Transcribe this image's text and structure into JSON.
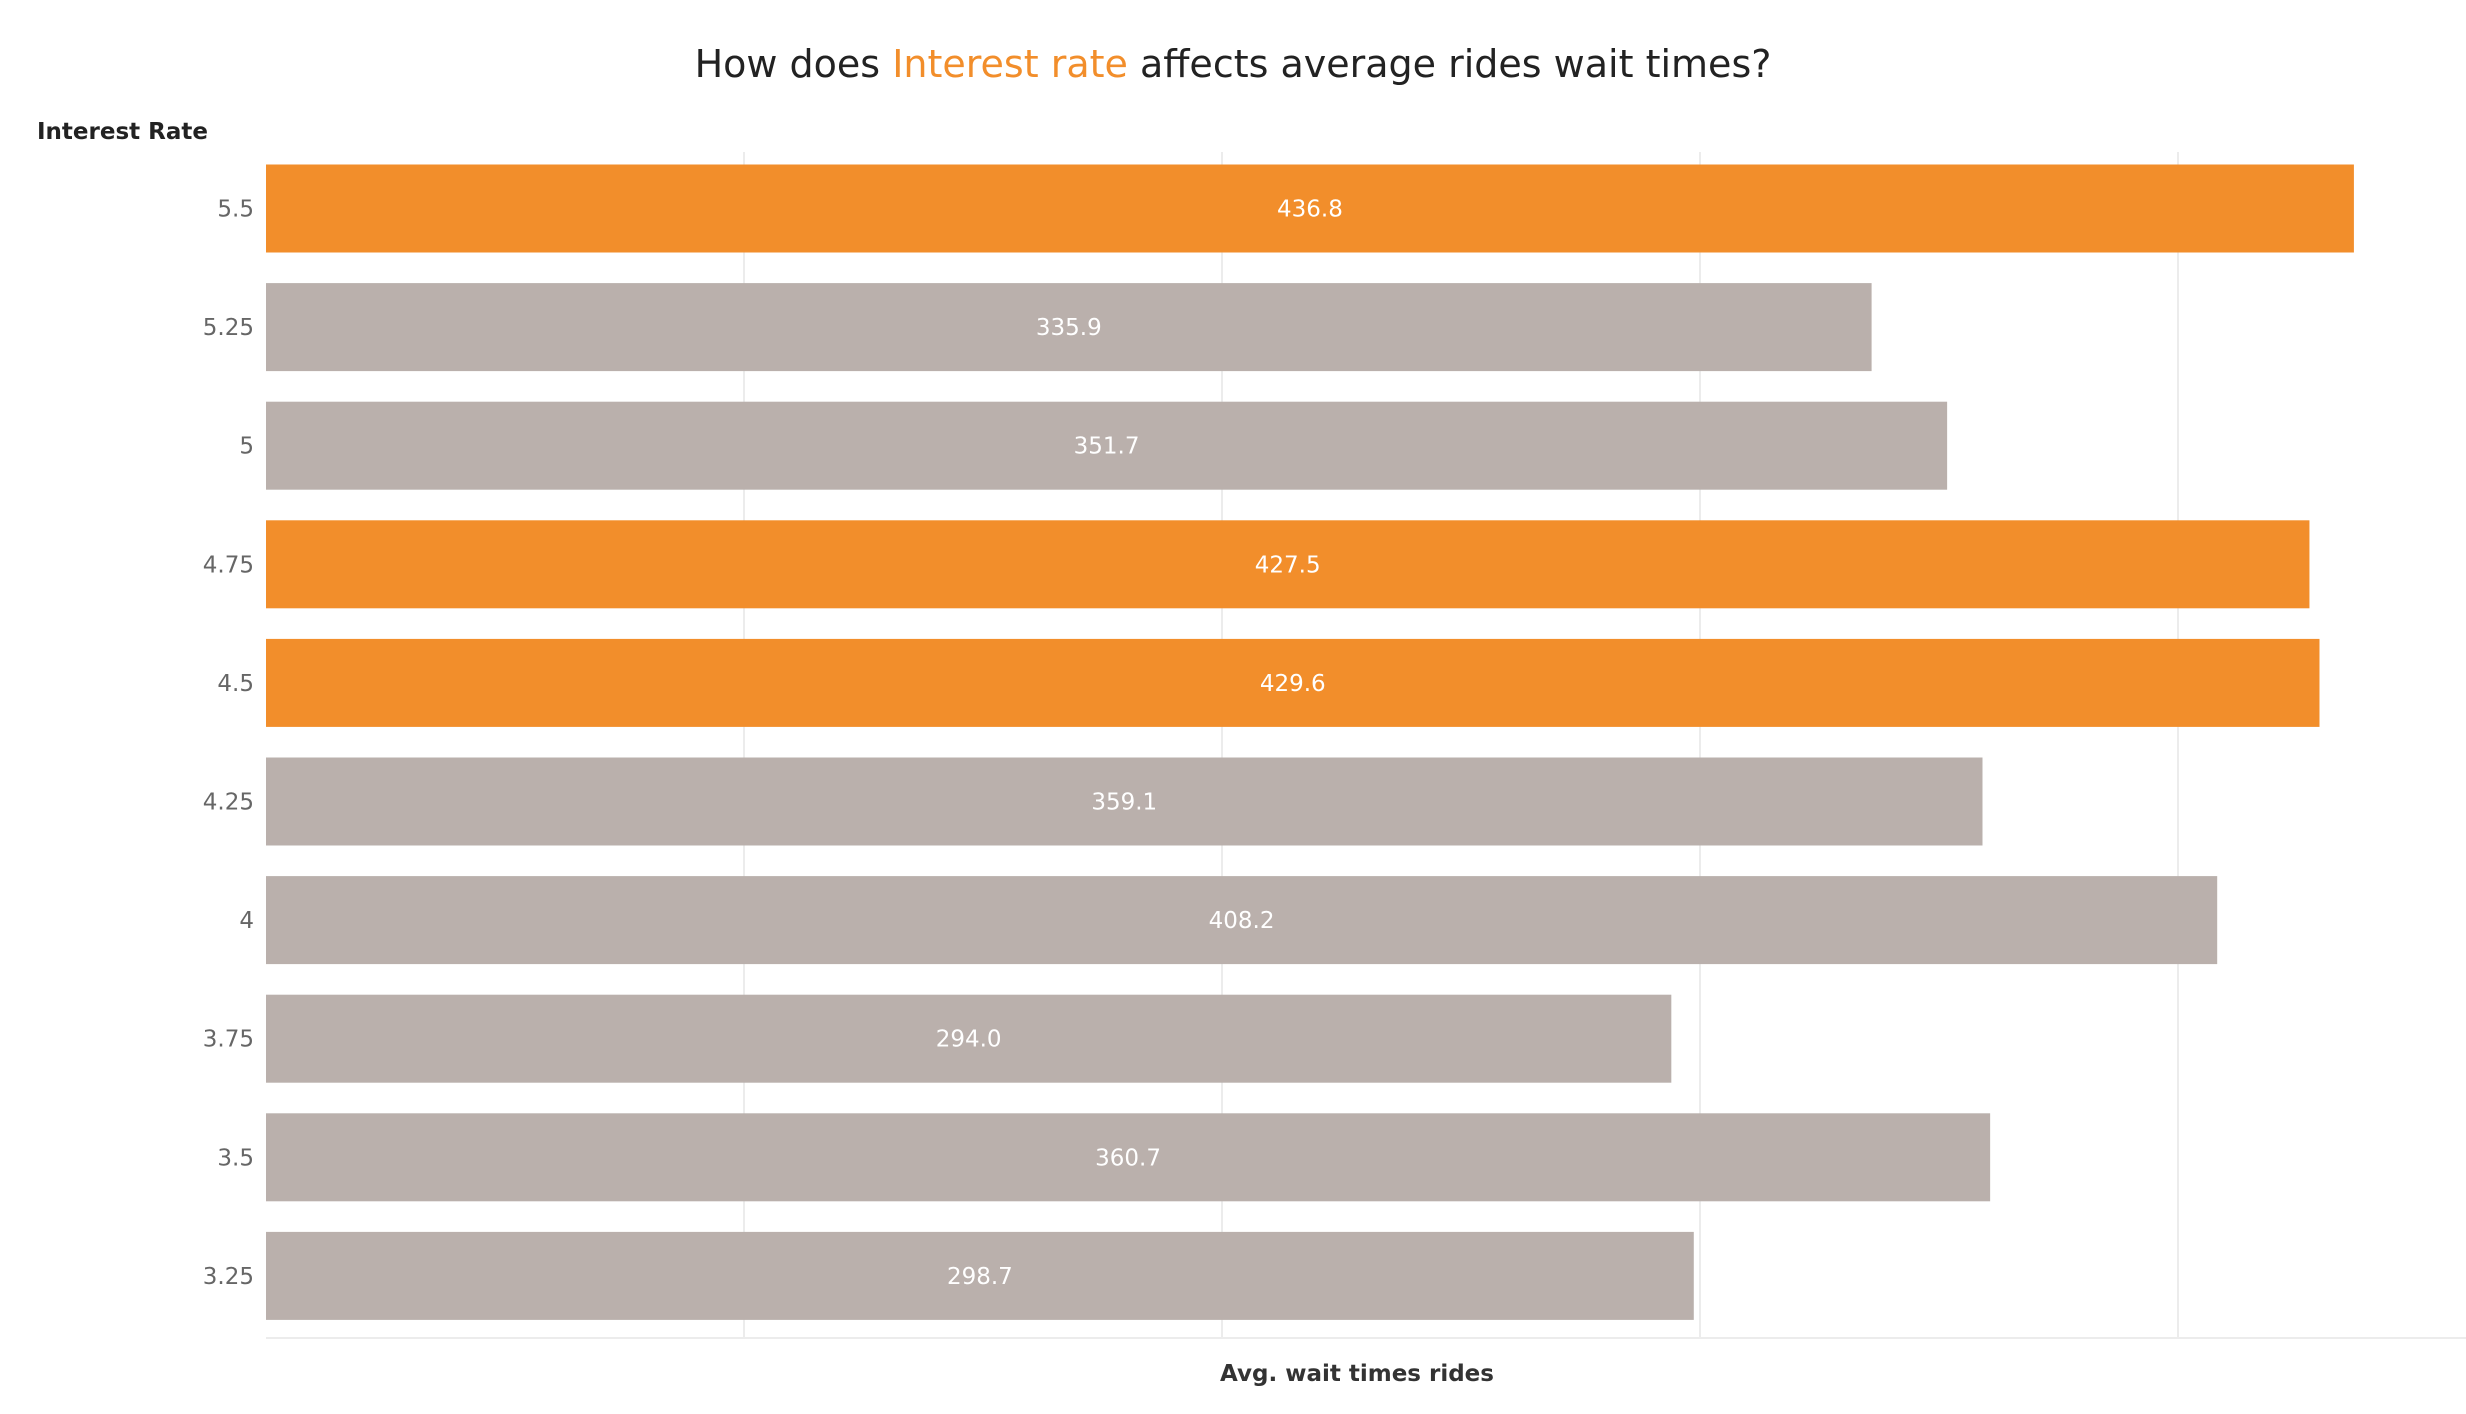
{
  "chart_data": {
    "type": "bar",
    "orientation": "horizontal",
    "title": {
      "prefix": "How does ",
      "highlight": "Interest rate",
      "suffix": " affects average rides wait times?"
    },
    "ylabel": "Interest Rate",
    "xlabel": "Avg. wait times rides",
    "categories": [
      "5.5",
      "5.25",
      "5",
      "4.75",
      "4.5",
      "4.25",
      "4",
      "3.75",
      "3.5",
      "3.25"
    ],
    "values": [
      436.8,
      335.9,
      351.7,
      427.5,
      429.6,
      359.1,
      408.2,
      294.0,
      360.7,
      298.7
    ],
    "value_labels": [
      "436.8",
      "335.9",
      "351.7",
      "427.5",
      "429.6",
      "359.1",
      "408.2",
      "294.0",
      "360.7",
      "298.7"
    ],
    "highlighted": [
      true,
      false,
      false,
      true,
      true,
      false,
      false,
      false,
      false,
      false
    ],
    "xlim": [
      0,
      460
    ],
    "grid": true,
    "x_tick_labels_shown": false,
    "colors": {
      "highlight": "#F28E2B",
      "default": "#BAB0AC",
      "label": "#FFFFFF"
    }
  }
}
